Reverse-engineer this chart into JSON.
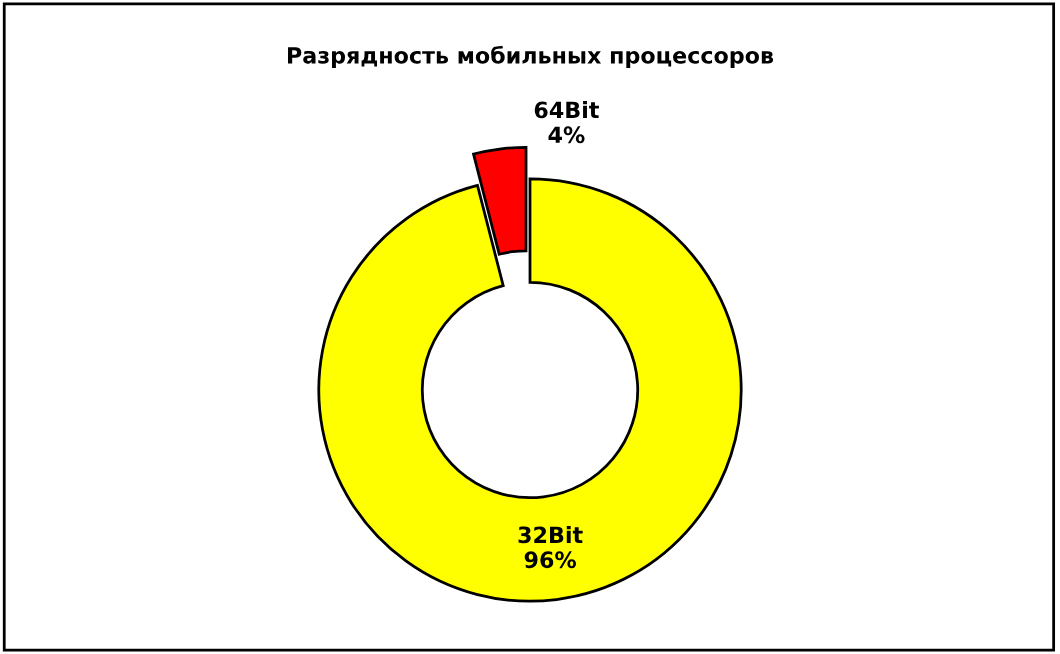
{
  "chart_data": {
    "type": "donut",
    "title": "Разрядность мобильных процессоров",
    "categories": [
      "32Bit",
      "64Bit"
    ],
    "values": [
      96,
      4
    ],
    "value_labels": [
      "96%",
      "4%"
    ],
    "colors": [
      "#ffff00",
      "#ff0000"
    ],
    "legend": false
  }
}
